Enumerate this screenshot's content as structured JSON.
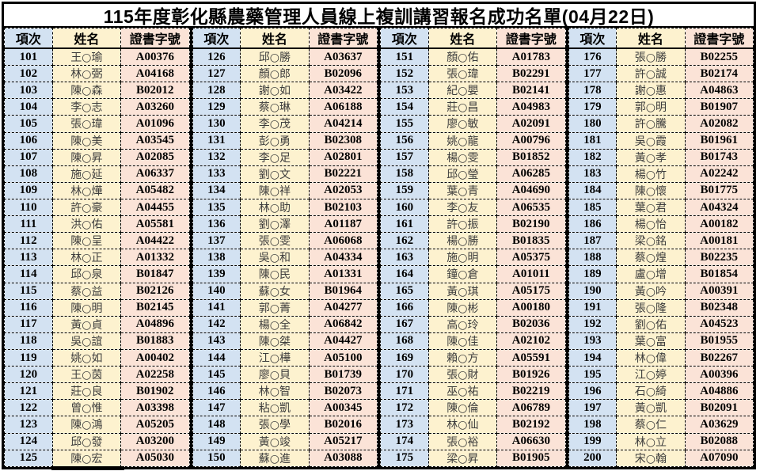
{
  "title": "115年度彰化縣農藥管理人員線上複訓講習報名成功名單(04月22日)",
  "headers": {
    "no": "項次",
    "name": "姓名",
    "cert": "證書字號"
  },
  "colors": {
    "no_column_bg": "#d3e2f2",
    "name_column_bg": "#fdf2cf",
    "cert_column_bg": "#fbe3d7",
    "border": "#000000",
    "name_text": "#3d3d3d",
    "number_text": "#000000"
  },
  "groups": [
    {
      "rows": [
        {
          "no": "101",
          "name": "王○瑜",
          "cert": "A00376"
        },
        {
          "no": "102",
          "name": "林○弼",
          "cert": "A04168"
        },
        {
          "no": "103",
          "name": "陳○森",
          "cert": "B02012"
        },
        {
          "no": "104",
          "name": "李○志",
          "cert": "A03260"
        },
        {
          "no": "105",
          "name": "張○瑋",
          "cert": "A01096"
        },
        {
          "no": "106",
          "name": "陳○美",
          "cert": "A03545"
        },
        {
          "no": "107",
          "name": "陳○昇",
          "cert": "A02085"
        },
        {
          "no": "108",
          "name": "施○延",
          "cert": "A06337"
        },
        {
          "no": "109",
          "name": "林○燁",
          "cert": "A05482"
        },
        {
          "no": "110",
          "name": "許○豪",
          "cert": "A04455"
        },
        {
          "no": "111",
          "name": "洪○佑",
          "cert": "A05581"
        },
        {
          "no": "112",
          "name": "陳○呈",
          "cert": "A04422"
        },
        {
          "no": "113",
          "name": "林○正",
          "cert": "A01332"
        },
        {
          "no": "114",
          "name": "邱○泉",
          "cert": "B01847"
        },
        {
          "no": "115",
          "name": "蔡○益",
          "cert": "B02126"
        },
        {
          "no": "116",
          "name": "陳○明",
          "cert": "B02145"
        },
        {
          "no": "117",
          "name": "黃○貞",
          "cert": "A04896"
        },
        {
          "no": "118",
          "name": "吳○誼",
          "cert": "B01883"
        },
        {
          "no": "119",
          "name": "姚○如",
          "cert": "A00402"
        },
        {
          "no": "120",
          "name": "王○茵",
          "cert": "A02258"
        },
        {
          "no": "121",
          "name": "莊○良",
          "cert": "B01902"
        },
        {
          "no": "122",
          "name": "曾○惟",
          "cert": "A03398"
        },
        {
          "no": "123",
          "name": "陳○鴻",
          "cert": "A05205"
        },
        {
          "no": "124",
          "name": "邱○發",
          "cert": "A03200"
        },
        {
          "no": "125",
          "name": "陳○宏",
          "cert": "A05030"
        }
      ]
    },
    {
      "rows": [
        {
          "no": "126",
          "name": "邱○勝",
          "cert": "A03637"
        },
        {
          "no": "127",
          "name": "顏○郎",
          "cert": "B02096"
        },
        {
          "no": "128",
          "name": "謝○如",
          "cert": "A03422"
        },
        {
          "no": "129",
          "name": "蔡○琳",
          "cert": "A06188"
        },
        {
          "no": "130",
          "name": "李○茂",
          "cert": "A04214"
        },
        {
          "no": "131",
          "name": "彭○勇",
          "cert": "B02308"
        },
        {
          "no": "132",
          "name": "李○足",
          "cert": "A02801"
        },
        {
          "no": "133",
          "name": "劉○文",
          "cert": "B02221"
        },
        {
          "no": "134",
          "name": "陳○祥",
          "cert": "A02053"
        },
        {
          "no": "135",
          "name": "林○助",
          "cert": "B02103"
        },
        {
          "no": "136",
          "name": "劉○澤",
          "cert": "A01187"
        },
        {
          "no": "137",
          "name": "張○雯",
          "cert": "A06068"
        },
        {
          "no": "138",
          "name": "吳○和",
          "cert": "A04334"
        },
        {
          "no": "139",
          "name": "陳○民",
          "cert": "A01331"
        },
        {
          "no": "140",
          "name": "蘇○女",
          "cert": "B01964"
        },
        {
          "no": "141",
          "name": "郭○菁",
          "cert": "A04277"
        },
        {
          "no": "142",
          "name": "楊○全",
          "cert": "A06842"
        },
        {
          "no": "143",
          "name": "陳○桀",
          "cert": "A04427"
        },
        {
          "no": "144",
          "name": "江○樺",
          "cert": "A05100"
        },
        {
          "no": "145",
          "name": "廖○貝",
          "cert": "B01739"
        },
        {
          "no": "146",
          "name": "林○智",
          "cert": "B02073"
        },
        {
          "no": "147",
          "name": "粘○凱",
          "cert": "A00345"
        },
        {
          "no": "148",
          "name": "張○學",
          "cert": "B02016"
        },
        {
          "no": "149",
          "name": "黃○竣",
          "cert": "A05217"
        },
        {
          "no": "150",
          "name": "蘇○進",
          "cert": "A03088"
        }
      ]
    },
    {
      "rows": [
        {
          "no": "151",
          "name": "顏○佑",
          "cert": "A01783"
        },
        {
          "no": "152",
          "name": "張○瑋",
          "cert": "B02291"
        },
        {
          "no": "153",
          "name": "紀○嬰",
          "cert": "B02141"
        },
        {
          "no": "154",
          "name": "莊○昌",
          "cert": "A04983"
        },
        {
          "no": "155",
          "name": "廖○敏",
          "cert": "A02091"
        },
        {
          "no": "156",
          "name": "姚○龍",
          "cert": "A00796"
        },
        {
          "no": "157",
          "name": "楊○雯",
          "cert": "B01852"
        },
        {
          "no": "158",
          "name": "邱○瑩",
          "cert": "A06285"
        },
        {
          "no": "159",
          "name": "葉○青",
          "cert": "A04690"
        },
        {
          "no": "160",
          "name": "李○友",
          "cert": "A06535"
        },
        {
          "no": "161",
          "name": "許○振",
          "cert": "B02190"
        },
        {
          "no": "162",
          "name": "楊○勝",
          "cert": "B01835"
        },
        {
          "no": "163",
          "name": "施○明",
          "cert": "A05375"
        },
        {
          "no": "164",
          "name": "鐘○倉",
          "cert": "A01011"
        },
        {
          "no": "165",
          "name": "黃○琪",
          "cert": "A05175"
        },
        {
          "no": "166",
          "name": "陳○彬",
          "cert": "A00180"
        },
        {
          "no": "167",
          "name": "高○玲",
          "cert": "B02036"
        },
        {
          "no": "168",
          "name": "陳○佳",
          "cert": "A02102"
        },
        {
          "no": "169",
          "name": "賴○方",
          "cert": "A05591"
        },
        {
          "no": "170",
          "name": "張○財",
          "cert": "B01926"
        },
        {
          "no": "171",
          "name": "巫○祐",
          "cert": "B02219"
        },
        {
          "no": "172",
          "name": "陳○倫",
          "cert": "A06789"
        },
        {
          "no": "173",
          "name": "林○仙",
          "cert": "B02192"
        },
        {
          "no": "174",
          "name": "張○裕",
          "cert": "A06630"
        },
        {
          "no": "175",
          "name": "梁○昇",
          "cert": "B01905"
        }
      ]
    },
    {
      "rows": [
        {
          "no": "176",
          "name": "張○勝",
          "cert": "B02255"
        },
        {
          "no": "177",
          "name": "許○誠",
          "cert": "B02174"
        },
        {
          "no": "178",
          "name": "謝○惠",
          "cert": "A04863"
        },
        {
          "no": "179",
          "name": "郭○明",
          "cert": "B01907"
        },
        {
          "no": "180",
          "name": "許○騰",
          "cert": "A02082"
        },
        {
          "no": "181",
          "name": "吳○霞",
          "cert": "B01961"
        },
        {
          "no": "182",
          "name": "黃○孝",
          "cert": "B01743"
        },
        {
          "no": "183",
          "name": "楊○竹",
          "cert": "A02242"
        },
        {
          "no": "184",
          "name": "陳○懷",
          "cert": "B01775"
        },
        {
          "no": "185",
          "name": "葉○君",
          "cert": "A04324"
        },
        {
          "no": "186",
          "name": "楊○怡",
          "cert": "A00182"
        },
        {
          "no": "187",
          "name": "梁○銘",
          "cert": "A00181"
        },
        {
          "no": "188",
          "name": "蔡○煌",
          "cert": "B02235"
        },
        {
          "no": "189",
          "name": "盧○增",
          "cert": "B01854"
        },
        {
          "no": "190",
          "name": "黃○吟",
          "cert": "A00391"
        },
        {
          "no": "191",
          "name": "張○隆",
          "cert": "B02348"
        },
        {
          "no": "192",
          "name": "劉○佑",
          "cert": "A04523"
        },
        {
          "no": "193",
          "name": "葉○富",
          "cert": "B01955"
        },
        {
          "no": "194",
          "name": "林○偉",
          "cert": "B02267"
        },
        {
          "no": "195",
          "name": "江○婷",
          "cert": "A00396"
        },
        {
          "no": "196",
          "name": "石○綺",
          "cert": "A04886"
        },
        {
          "no": "197",
          "name": "黃○凱",
          "cert": "B02091"
        },
        {
          "no": "198",
          "name": "蔡○仁",
          "cert": "A03629"
        },
        {
          "no": "199",
          "name": "林○立",
          "cert": "B02088"
        },
        {
          "no": "200",
          "name": "宋○翰",
          "cert": "A07090"
        }
      ]
    }
  ]
}
